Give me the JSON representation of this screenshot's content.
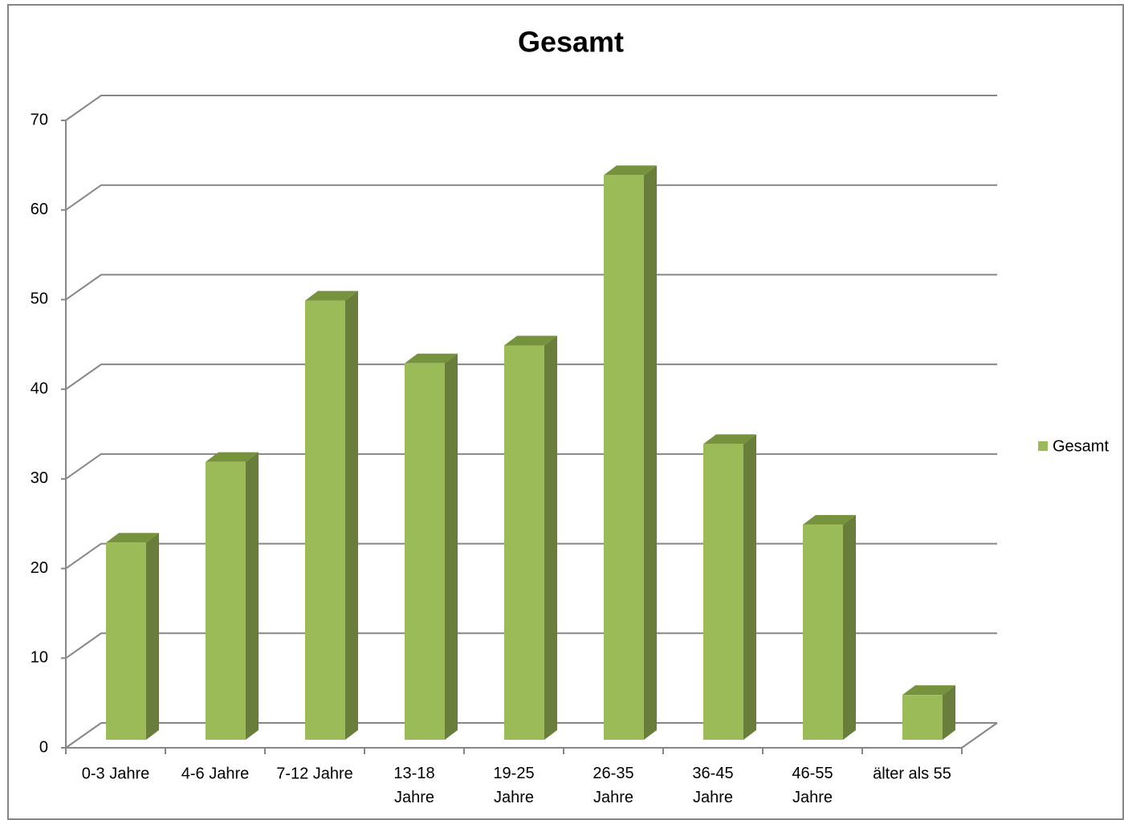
{
  "chart_data": {
    "type": "bar3d",
    "title": "Gesamt",
    "categories": [
      "0-3 Jahre",
      "4-6 Jahre",
      "7-12 Jahre",
      "13-18\nJahre",
      "19-25\nJahre",
      "26-35\nJahre",
      "36-45\nJahre",
      "46-55\nJahre",
      "älter als 55"
    ],
    "series": [
      {
        "name": "Gesamt",
        "color": "#9bbb59",
        "values": [
          22,
          31,
          49,
          42,
          44,
          63,
          33,
          24,
          5
        ]
      }
    ],
    "ylim": [
      0,
      70
    ],
    "yticks": [
      0,
      10,
      20,
      30,
      40,
      50,
      60,
      70
    ],
    "grid": true,
    "legend": "right"
  }
}
